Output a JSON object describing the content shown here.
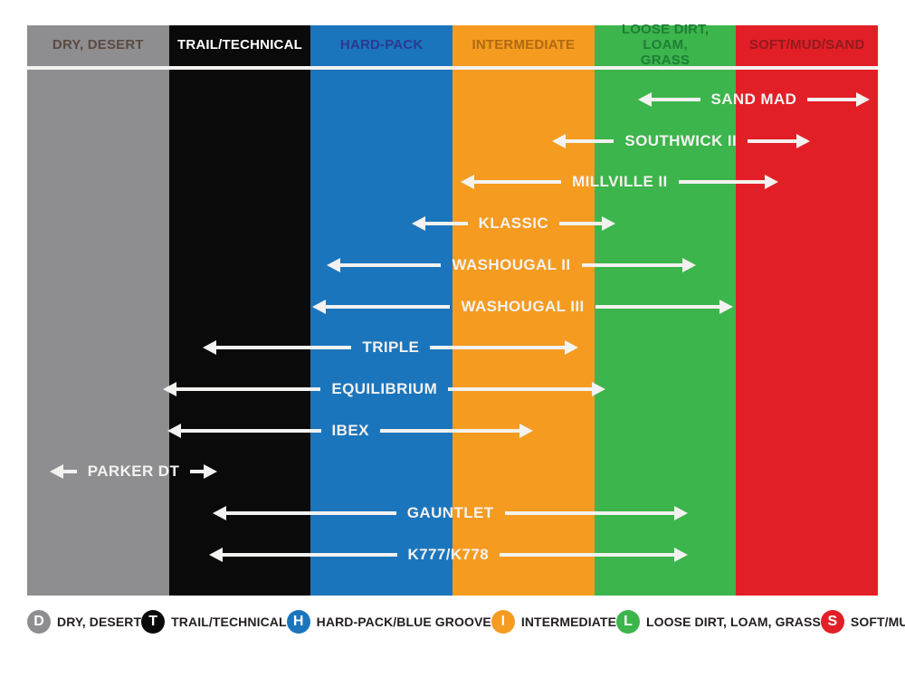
{
  "page": {
    "background": "#ffffff"
  },
  "chart_data": {
    "type": "range-arrows",
    "title": "",
    "axis_unit": "terrain column index (0 = left edge of DRY, DESERT column, 6 = right edge of SOFT/MUD/SAND column)",
    "arrow_color": "#f3f2f0",
    "terrain_columns": [
      {
        "label": "DRY, DESERT",
        "color": "#8e8e90",
        "header_text_color": "#5a4a42"
      },
      {
        "label": "TRAIL/TECHNICAL",
        "color": "#0a0a0a",
        "header_text_color": "#ffffff"
      },
      {
        "label": "HARD-PACK",
        "color": "#1b75bc",
        "header_text_color": "#2b3990"
      },
      {
        "label": "INTERMEDIATE",
        "color": "#f59b20",
        "header_text_color": "#b06a10"
      },
      {
        "label": "LOOSE DIRT, LOAM,\nGRASS",
        "color": "#3cb54c",
        "header_text_color": "#1e7e35"
      },
      {
        "label": "SOFT/MUD/SAND",
        "color": "#e21f26",
        "header_text_color": "#901b1f"
      }
    ],
    "tires": [
      {
        "name": "SAND MAD",
        "span": [
          4.31,
          5.94
        ]
      },
      {
        "name": "SOUTHWICK II",
        "span": [
          3.7,
          5.52
        ]
      },
      {
        "name": "MILLVILLE II",
        "span": [
          3.06,
          5.3
        ]
      },
      {
        "name": "KLASSIC",
        "span": [
          2.71,
          4.15
        ]
      },
      {
        "name": "WASHOUGAL II",
        "span": [
          2.11,
          4.72
        ]
      },
      {
        "name": "WASHOUGAL III",
        "span": [
          2.01,
          4.98
        ]
      },
      {
        "name": "TRIPLE",
        "span": [
          1.24,
          3.89
        ]
      },
      {
        "name": "EQUILIBRIUM",
        "span": [
          0.96,
          4.08
        ]
      },
      {
        "name": "IBEX",
        "span": [
          0.99,
          3.57
        ]
      },
      {
        "name": "PARKER DT",
        "span": [
          0.16,
          1.34
        ]
      },
      {
        "name": "GAUNTLET",
        "span": [
          1.31,
          4.66
        ]
      },
      {
        "name": "K777/K778",
        "span": [
          1.28,
          4.66
        ]
      }
    ]
  },
  "legend": {
    "items": [
      {
        "letter": "D",
        "color": "#8e8e90",
        "label": "DRY, DESERT"
      },
      {
        "letter": "T",
        "color": "#0a0a0a",
        "label": "TRAIL/TECHNICAL"
      },
      {
        "letter": "H",
        "color": "#1b75bc",
        "label": "HARD-PACK/BLUE GROOVE"
      },
      {
        "letter": "I",
        "color": "#f59b20",
        "label": "INTERMEDIATE"
      },
      {
        "letter": "L",
        "color": "#3cb54c",
        "label": "LOOSE DIRT, LOAM, GRASS"
      },
      {
        "letter": "S",
        "color": "#e21f26",
        "label": "SOFT/MUD/SAND"
      }
    ]
  }
}
